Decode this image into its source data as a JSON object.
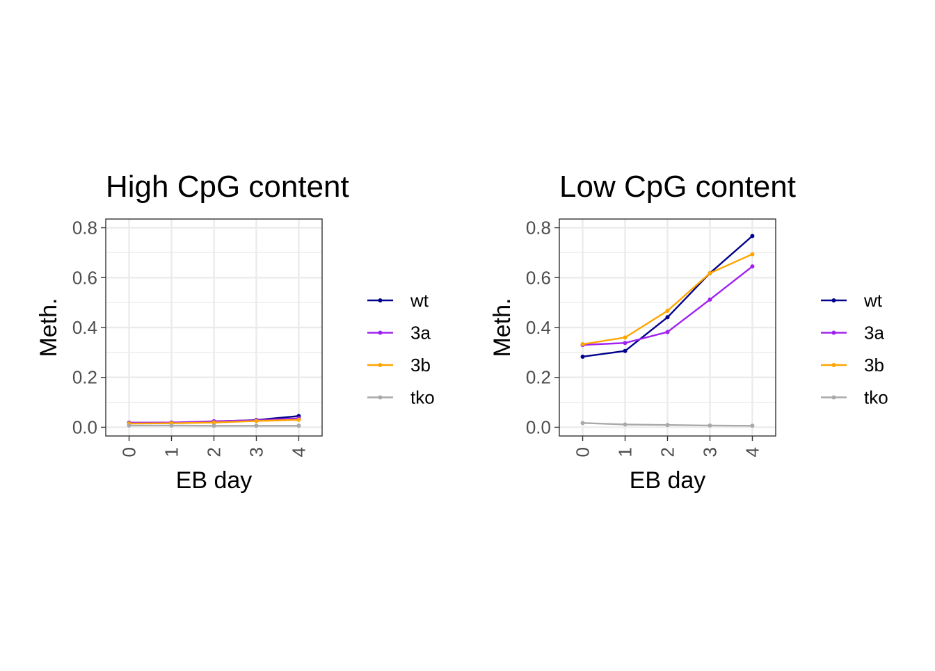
{
  "chart_data": [
    {
      "type": "line",
      "title": "High CpG content",
      "xlabel": "EB day",
      "ylabel": "Meth.",
      "categories": [
        "0",
        "1",
        "2",
        "3",
        "4"
      ],
      "x": [
        0,
        1,
        2,
        3,
        4
      ],
      "xlim": [
        -0.55,
        4.55
      ],
      "ylim": [
        -0.035,
        0.835
      ],
      "yticks": [
        0.0,
        0.2,
        0.4,
        0.6,
        0.8
      ],
      "ytick_labels": [
        "0.0",
        "0.2",
        "0.4",
        "0.6",
        "0.8"
      ],
      "grid": true,
      "legend": "right",
      "series": [
        {
          "name": "wt",
          "color": "#00008B",
          "values": [
            0.018,
            0.018,
            0.023,
            0.029,
            0.045
          ]
        },
        {
          "name": "3a",
          "color": "#A020F0",
          "values": [
            0.018,
            0.019,
            0.024,
            0.028,
            0.036
          ]
        },
        {
          "name": "3b",
          "color": "#FFA500",
          "values": [
            0.015,
            0.016,
            0.019,
            0.025,
            0.03
          ]
        },
        {
          "name": "tko",
          "color": "#A9A9A9",
          "values": [
            0.007,
            0.007,
            0.006,
            0.006,
            0.006
          ]
        }
      ]
    },
    {
      "type": "line",
      "title": "Low CpG content",
      "xlabel": "EB day",
      "ylabel": "Meth.",
      "categories": [
        "0",
        "1",
        "2",
        "3",
        "4"
      ],
      "x": [
        0,
        1,
        2,
        3,
        4
      ],
      "xlim": [
        -0.55,
        4.55
      ],
      "ylim": [
        -0.035,
        0.835
      ],
      "yticks": [
        0.0,
        0.2,
        0.4,
        0.6,
        0.8
      ],
      "ytick_labels": [
        "0.0",
        "0.2",
        "0.4",
        "0.6",
        "0.8"
      ],
      "grid": true,
      "legend": "right",
      "series": [
        {
          "name": "wt",
          "color": "#00008B",
          "values": [
            0.283,
            0.306,
            0.441,
            0.618,
            0.767
          ]
        },
        {
          "name": "3a",
          "color": "#A020F0",
          "values": [
            0.33,
            0.338,
            0.382,
            0.512,
            0.645
          ]
        },
        {
          "name": "3b",
          "color": "#FFA500",
          "values": [
            0.333,
            0.36,
            0.467,
            0.618,
            0.694
          ]
        },
        {
          "name": "tko",
          "color": "#A9A9A9",
          "values": [
            0.017,
            0.011,
            0.009,
            0.007,
            0.006
          ]
        }
      ]
    }
  ]
}
